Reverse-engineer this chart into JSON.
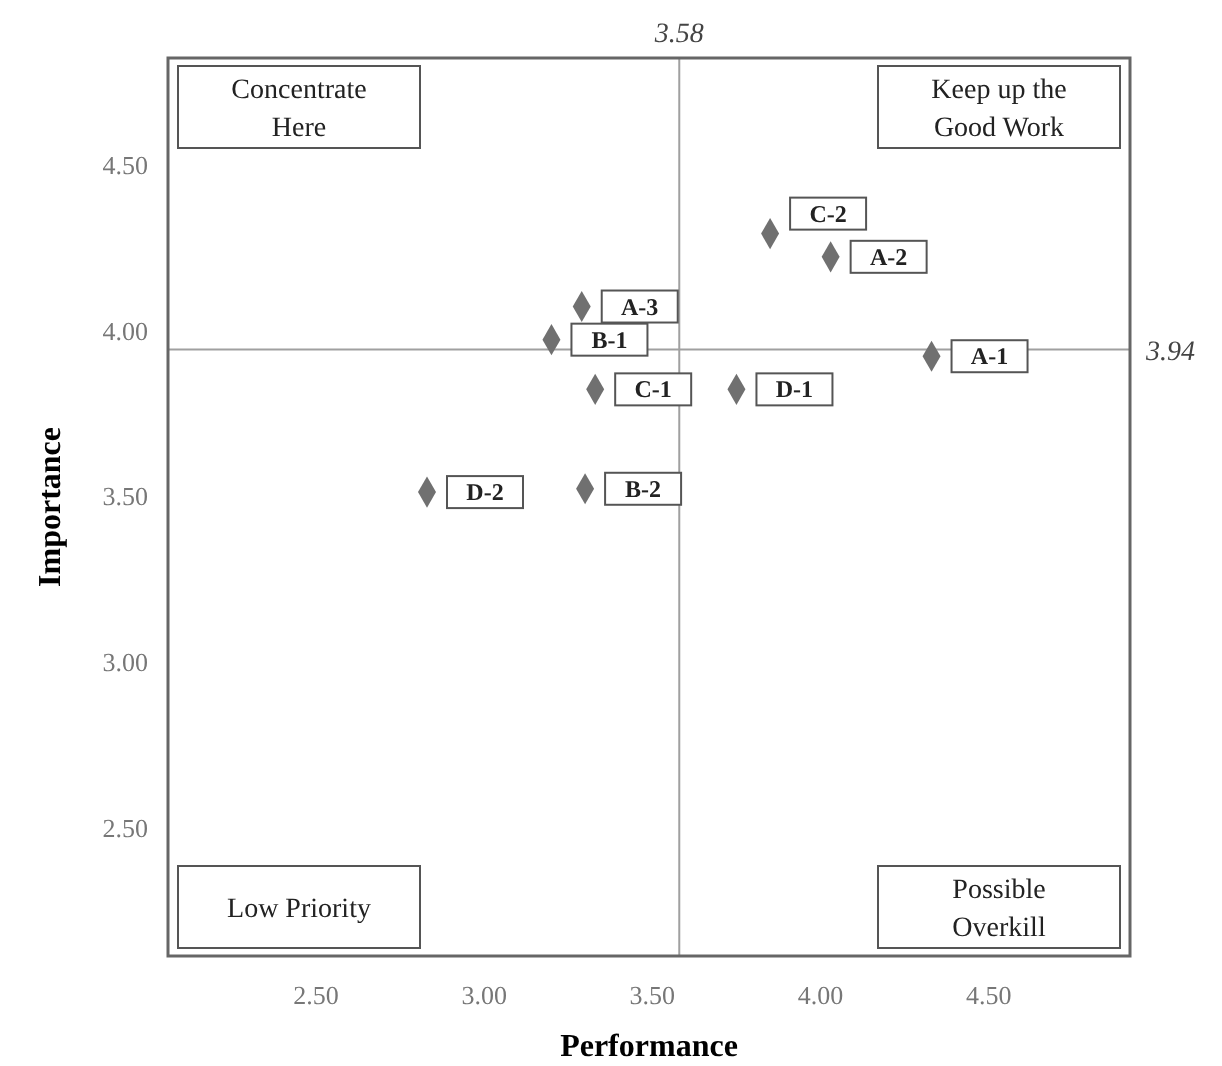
{
  "chart_data": {
    "type": "scatter",
    "xlabel": "Performance",
    "ylabel": "Importance",
    "xlim": [
      2.06,
      4.92
    ],
    "xticks": [
      {
        "value": 2.5,
        "label": "2.50"
      },
      {
        "value": 3,
        "label": "3.00"
      },
      {
        "value": 3.5,
        "label": "3.50"
      },
      {
        "value": 4,
        "label": "4.00"
      },
      {
        "value": 4.5,
        "label": "4.50"
      }
    ],
    "ylim": [
      2.11,
      4.82
    ],
    "yticks": [
      {
        "value": 2.5,
        "label": "2.50"
      },
      {
        "value": 3,
        "label": "3.00"
      },
      {
        "value": 3.5,
        "label": "3.50"
      },
      {
        "value": 4,
        "label": "4.00"
      },
      {
        "value": 4.5,
        "label": "4.50"
      }
    ],
    "x": [
      3.85,
      4.03,
      3.29,
      3.2,
      4.33,
      3.33,
      3.75,
      3.3,
      2.83
    ],
    "values": [
      4.29,
      4.22,
      4.07,
      3.97,
      3.92,
      3.82,
      3.82,
      3.52,
      3.51
    ],
    "value_labels": [
      "C-2",
      "A-2",
      "A-3",
      "B-1",
      "A-1",
      "C-1",
      "D-1",
      "B-2",
      "D-2"
    ],
    "color": "#707070",
    "marker": "diamond",
    "grid": false,
    "ref_lines": [
      {
        "axis": "x",
        "value": 3.58,
        "label": "3.58",
        "color": "#a0a0a0"
      },
      {
        "axis": "y",
        "value": 3.94,
        "label": "3.94",
        "color": "#a0a0a0"
      }
    ],
    "annotations": [
      "Concentrate Here",
      "Keep up the Good Work",
      "Low Priority",
      "Possible Overkill"
    ]
  }
}
